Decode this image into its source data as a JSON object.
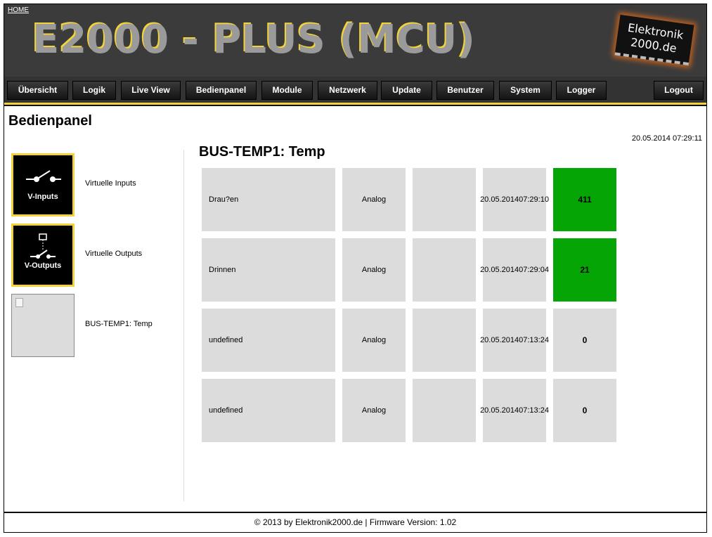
{
  "header": {
    "home": "HOME",
    "title": "E2000 - PLUS (MCU)",
    "logo": "Elektronik 2000.de"
  },
  "nav": [
    "Übersicht",
    "Logik",
    "Live View",
    "Bedienpanel",
    "Module",
    "Netzwerk",
    "Update",
    "Benutzer",
    "System",
    "Logger"
  ],
  "logout": "Logout",
  "page_title": "Bedienpanel",
  "datetime": "20.05.2014 07:29:11",
  "sidebar": [
    {
      "icon_text": "V-Inputs",
      "label": "Virtuelle Inputs",
      "icon": "switch-icon"
    },
    {
      "icon_text": "V-Outputs",
      "label": "Virtuelle Outputs",
      "icon": "relay-output-icon"
    },
    {
      "icon_text": "",
      "label": "BUS-TEMP1: Temp",
      "icon": "broken-image-icon"
    }
  ],
  "panel": {
    "title": "BUS-TEMP1: Temp",
    "rows": [
      {
        "name": "Drau?en",
        "type": "Analog",
        "extra": "",
        "date": "20.05.2014",
        "time": "07:29:10",
        "value": "411",
        "color": "#06a506"
      },
      {
        "name": "Drinnen",
        "type": "Analog",
        "extra": "",
        "date": "20.05.2014",
        "time": "07:29:04",
        "value": "21",
        "color": "#06a506"
      },
      {
        "name": "undefined",
        "type": "Analog",
        "extra": "",
        "date": "20.05.2014",
        "time": "07:13:24",
        "value": "0",
        "color": "#dcdcdc"
      },
      {
        "name": "undefined",
        "type": "Analog",
        "extra": "",
        "date": "20.05.2014",
        "time": "07:13:24",
        "value": "0",
        "color": "#dcdcdc"
      }
    ]
  },
  "footer": "© 2013 by Elektronik2000.de | Firmware Version: 1.02"
}
